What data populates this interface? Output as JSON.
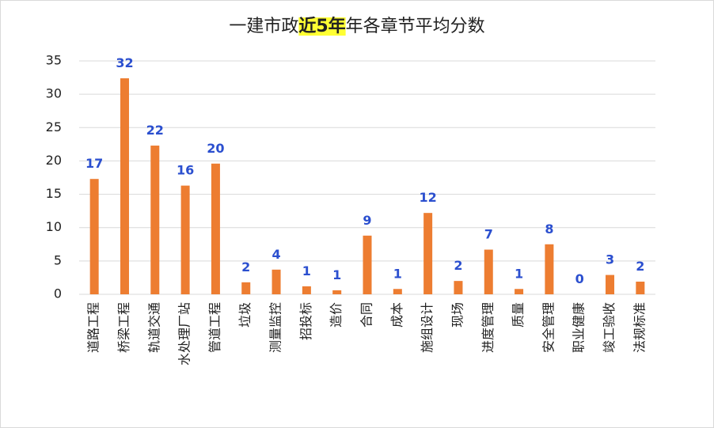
{
  "chart_data": {
    "type": "bar",
    "title": [
      "一建市政",
      "近5年",
      "年各章节平均分数"
    ],
    "title_highlight": "#ffff33",
    "categories": [
      "道路工程",
      "桥梁工程",
      "轨道交通",
      "水处理厂站",
      "管道工程",
      "垃圾",
      "测量监控",
      "招投标",
      "造价",
      "合同",
      "成本",
      "施组设计",
      "现场",
      "进度管理",
      "质量",
      "安全管理",
      "职业健康",
      "竣工验收",
      "法规标准"
    ],
    "values": [
      17.3,
      32.4,
      22.3,
      16.3,
      19.6,
      1.8,
      3.7,
      1.2,
      0.6,
      8.8,
      0.8,
      12.2,
      2.0,
      6.7,
      0.8,
      7.5,
      0,
      2.9,
      1.9
    ],
    "value_labels": [
      "17",
      "32",
      "22",
      "16",
      "20",
      "2",
      "4",
      "1",
      "1",
      "9",
      "1",
      "12",
      "2",
      "7",
      "1",
      "8",
      "0",
      "3",
      "2"
    ],
    "color": "#ed7d31",
    "ylim": [
      0,
      35
    ],
    "yticks": [
      0,
      5,
      10,
      15,
      20,
      25,
      30,
      35
    ],
    "grid": true
  }
}
